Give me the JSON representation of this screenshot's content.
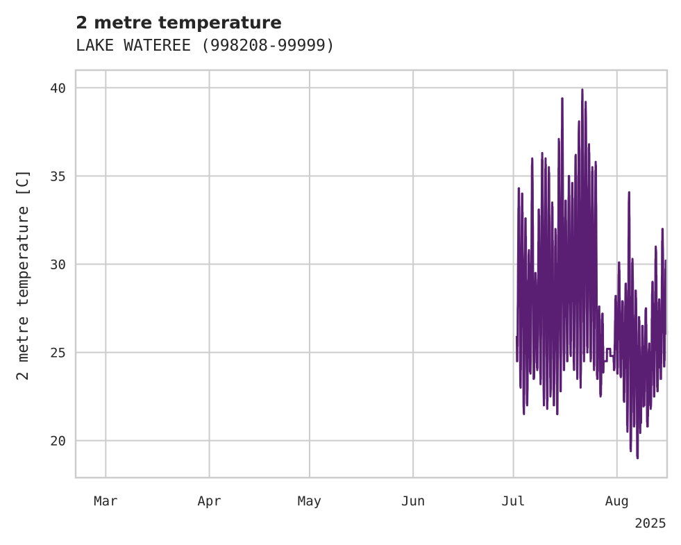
{
  "chart_data": {
    "type": "line",
    "title": "2 metre temperature",
    "subtitle": "LAKE WATEREE (998208-99999)",
    "xlabel": "",
    "ylabel": "2 metre temperature [C]",
    "x_year_label": "2025",
    "x_range": [
      "2025-02-20",
      "2025-08-16"
    ],
    "ylim": [
      17.9,
      41
    ],
    "y_ticks": [
      20,
      25,
      30,
      35,
      40
    ],
    "x_ticks": [
      {
        "date": "2025-03-01",
        "label": "Mar"
      },
      {
        "date": "2025-04-01",
        "label": "Apr"
      },
      {
        "date": "2025-05-01",
        "label": "May"
      },
      {
        "date": "2025-06-01",
        "label": "Jun"
      },
      {
        "date": "2025-07-01",
        "label": "Jul"
      },
      {
        "date": "2025-08-01",
        "label": "Aug"
      }
    ],
    "grid": true,
    "series": [
      {
        "name": "2 metre temperature",
        "color": "#5a1e72",
        "start": "2025-07-02",
        "end": "2025-08-15",
        "daily_min": [
          24.5,
          23.0,
          21.5,
          22.0,
          23.8,
          23.5,
          24.0,
          23.2,
          22.0,
          21.8,
          22.5,
          22.0,
          21.5,
          22.8,
          24.0,
          24.5,
          24.8,
          24.0,
          23.5,
          23.0,
          24.5,
          25.0,
          24.5,
          24.0,
          23.5,
          22.5,
          24.5,
          25.2,
          24.8,
          24.0,
          23.8,
          23.6,
          22.2,
          20.5,
          19.4,
          20.8,
          19.0,
          21.0,
          22.0,
          20.8,
          21.8,
          22.5,
          22.8,
          23.5,
          24.2
        ],
        "daily_max": [
          34.3,
          34.0,
          32.6,
          30.8,
          36.0,
          29.5,
          33.1,
          36.3,
          36.0,
          35.5,
          33.5,
          32.0,
          37.1,
          39.4,
          33.6,
          35.0,
          34.6,
          36.2,
          38.1,
          39.9,
          39.2,
          36.8,
          35.5,
          35.8,
          27.6,
          27.2,
          23.7,
          25.2,
          24.4,
          28.2,
          30.1,
          27.9,
          28.9,
          34.1,
          30.3,
          28.5,
          27.0,
          26.5,
          27.5,
          25.5,
          29.0,
          31.0,
          28.0,
          32.0,
          30.2
        ]
      }
    ]
  }
}
